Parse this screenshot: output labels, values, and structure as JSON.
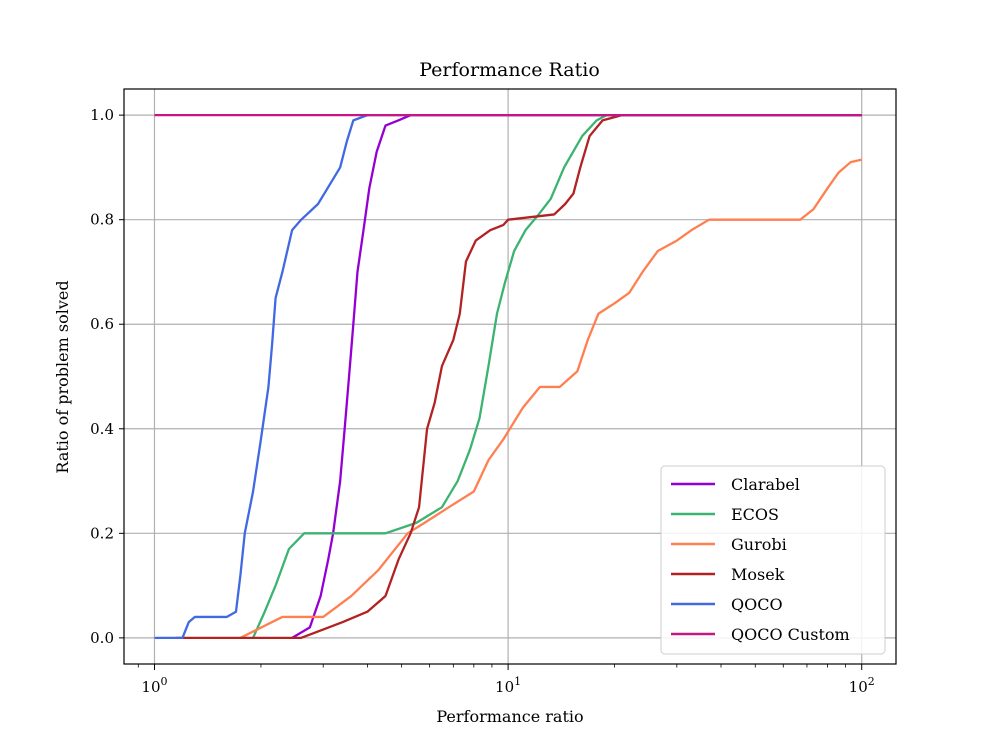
{
  "chart_data": {
    "type": "line",
    "title": "Performance Ratio",
    "xlabel": "Performance ratio",
    "ylabel": "Ratio of problem solved",
    "x_scale": "log",
    "xlim": [
      0.82,
      125
    ],
    "ylim": [
      -0.05,
      1.05
    ],
    "x_ticks": [
      1,
      10,
      100
    ],
    "x_tick_labels": [
      {
        "base": "10",
        "exp": "0"
      },
      {
        "base": "10",
        "exp": "1"
      },
      {
        "base": "10",
        "exp": "2"
      }
    ],
    "y_ticks": [
      0.0,
      0.2,
      0.4,
      0.6,
      0.8,
      1.0
    ],
    "y_tick_labels": [
      "0.0",
      "0.2",
      "0.4",
      "0.6",
      "0.8",
      "1.0"
    ],
    "grid": true,
    "legend_position": "lower-right",
    "series": [
      {
        "name": "Clarabel",
        "color": "#9400d3",
        "points": [
          [
            2.45,
            0.0
          ],
          [
            2.75,
            0.02
          ],
          [
            2.95,
            0.08
          ],
          [
            3.1,
            0.15
          ],
          [
            3.2,
            0.2
          ],
          [
            3.35,
            0.3
          ],
          [
            3.45,
            0.4
          ],
          [
            3.55,
            0.5
          ],
          [
            3.65,
            0.6
          ],
          [
            3.75,
            0.7
          ],
          [
            3.9,
            0.78
          ],
          [
            4.05,
            0.86
          ],
          [
            4.25,
            0.93
          ],
          [
            4.5,
            0.98
          ],
          [
            4.9,
            0.99
          ],
          [
            5.3,
            1.0
          ],
          [
            100,
            1.0
          ]
        ]
      },
      {
        "name": "ECOS",
        "color": "#3cb371",
        "points": [
          [
            1.9,
            0.0
          ],
          [
            2.05,
            0.05
          ],
          [
            2.2,
            0.1
          ],
          [
            2.4,
            0.17
          ],
          [
            2.65,
            0.2
          ],
          [
            3.5,
            0.2
          ],
          [
            4.5,
            0.2
          ],
          [
            5.5,
            0.22
          ],
          [
            6.5,
            0.25
          ],
          [
            7.2,
            0.3
          ],
          [
            7.8,
            0.36
          ],
          [
            8.3,
            0.42
          ],
          [
            8.8,
            0.52
          ],
          [
            9.3,
            0.62
          ],
          [
            9.8,
            0.68
          ],
          [
            10.4,
            0.74
          ],
          [
            11.2,
            0.78
          ],
          [
            12.2,
            0.81
          ],
          [
            13.2,
            0.84
          ],
          [
            14.4,
            0.9
          ],
          [
            16.2,
            0.96
          ],
          [
            17.8,
            0.99
          ],
          [
            19.0,
            1.0
          ],
          [
            100,
            1.0
          ]
        ]
      },
      {
        "name": "Gurobi",
        "color": "#ff7f50",
        "points": [
          [
            1.75,
            0.0
          ],
          [
            2.3,
            0.04
          ],
          [
            3.0,
            0.04
          ],
          [
            3.6,
            0.08
          ],
          [
            4.3,
            0.13
          ],
          [
            5.2,
            0.2
          ],
          [
            5.8,
            0.22
          ],
          [
            6.8,
            0.25
          ],
          [
            8.0,
            0.28
          ],
          [
            8.8,
            0.34
          ],
          [
            9.7,
            0.38
          ],
          [
            11.0,
            0.44
          ],
          [
            12.3,
            0.48
          ],
          [
            14.0,
            0.48
          ],
          [
            15.7,
            0.51
          ],
          [
            16.8,
            0.57
          ],
          [
            18.0,
            0.62
          ],
          [
            20.0,
            0.64
          ],
          [
            22.0,
            0.66
          ],
          [
            24.0,
            0.7
          ],
          [
            26.5,
            0.74
          ],
          [
            30.0,
            0.76
          ],
          [
            33.0,
            0.78
          ],
          [
            37.0,
            0.8
          ],
          [
            50.0,
            0.8
          ],
          [
            67.0,
            0.8
          ],
          [
            73.0,
            0.82
          ],
          [
            80.0,
            0.86
          ],
          [
            86.0,
            0.89
          ],
          [
            93.0,
            0.91
          ],
          [
            100,
            0.915
          ]
        ]
      },
      {
        "name": "Mosek",
        "color": "#b22222",
        "points": [
          [
            1.15,
            0.0
          ],
          [
            2.6,
            0.0
          ],
          [
            3.4,
            0.03
          ],
          [
            4.0,
            0.05
          ],
          [
            4.5,
            0.08
          ],
          [
            4.9,
            0.15
          ],
          [
            5.3,
            0.2
          ],
          [
            5.6,
            0.25
          ],
          [
            5.9,
            0.4
          ],
          [
            6.2,
            0.45
          ],
          [
            6.5,
            0.52
          ],
          [
            7.0,
            0.57
          ],
          [
            7.3,
            0.62
          ],
          [
            7.6,
            0.72
          ],
          [
            8.1,
            0.76
          ],
          [
            8.9,
            0.78
          ],
          [
            9.7,
            0.79
          ],
          [
            10.0,
            0.8
          ],
          [
            13.5,
            0.81
          ],
          [
            14.5,
            0.83
          ],
          [
            15.3,
            0.85
          ],
          [
            16.0,
            0.9
          ],
          [
            17.0,
            0.96
          ],
          [
            18.5,
            0.99
          ],
          [
            21.0,
            1.0
          ],
          [
            100,
            1.0
          ]
        ]
      },
      {
        "name": "QOCO",
        "color": "#4169e1",
        "points": [
          [
            1.0,
            0.0
          ],
          [
            1.2,
            0.0
          ],
          [
            1.25,
            0.03
          ],
          [
            1.3,
            0.04
          ],
          [
            1.6,
            0.04
          ],
          [
            1.7,
            0.05
          ],
          [
            1.75,
            0.12
          ],
          [
            1.8,
            0.2
          ],
          [
            1.9,
            0.28
          ],
          [
            2.0,
            0.38
          ],
          [
            2.1,
            0.48
          ],
          [
            2.15,
            0.56
          ],
          [
            2.2,
            0.65
          ],
          [
            2.3,
            0.7
          ],
          [
            2.45,
            0.78
          ],
          [
            2.6,
            0.8
          ],
          [
            2.9,
            0.83
          ],
          [
            3.15,
            0.87
          ],
          [
            3.35,
            0.9
          ],
          [
            3.5,
            0.95
          ],
          [
            3.65,
            0.99
          ],
          [
            4.0,
            1.0
          ],
          [
            100,
            1.0
          ]
        ]
      },
      {
        "name": "QOCO Custom",
        "color": "#c71585",
        "points": [
          [
            1.0,
            1.0
          ],
          [
            100,
            1.0
          ]
        ]
      }
    ]
  }
}
